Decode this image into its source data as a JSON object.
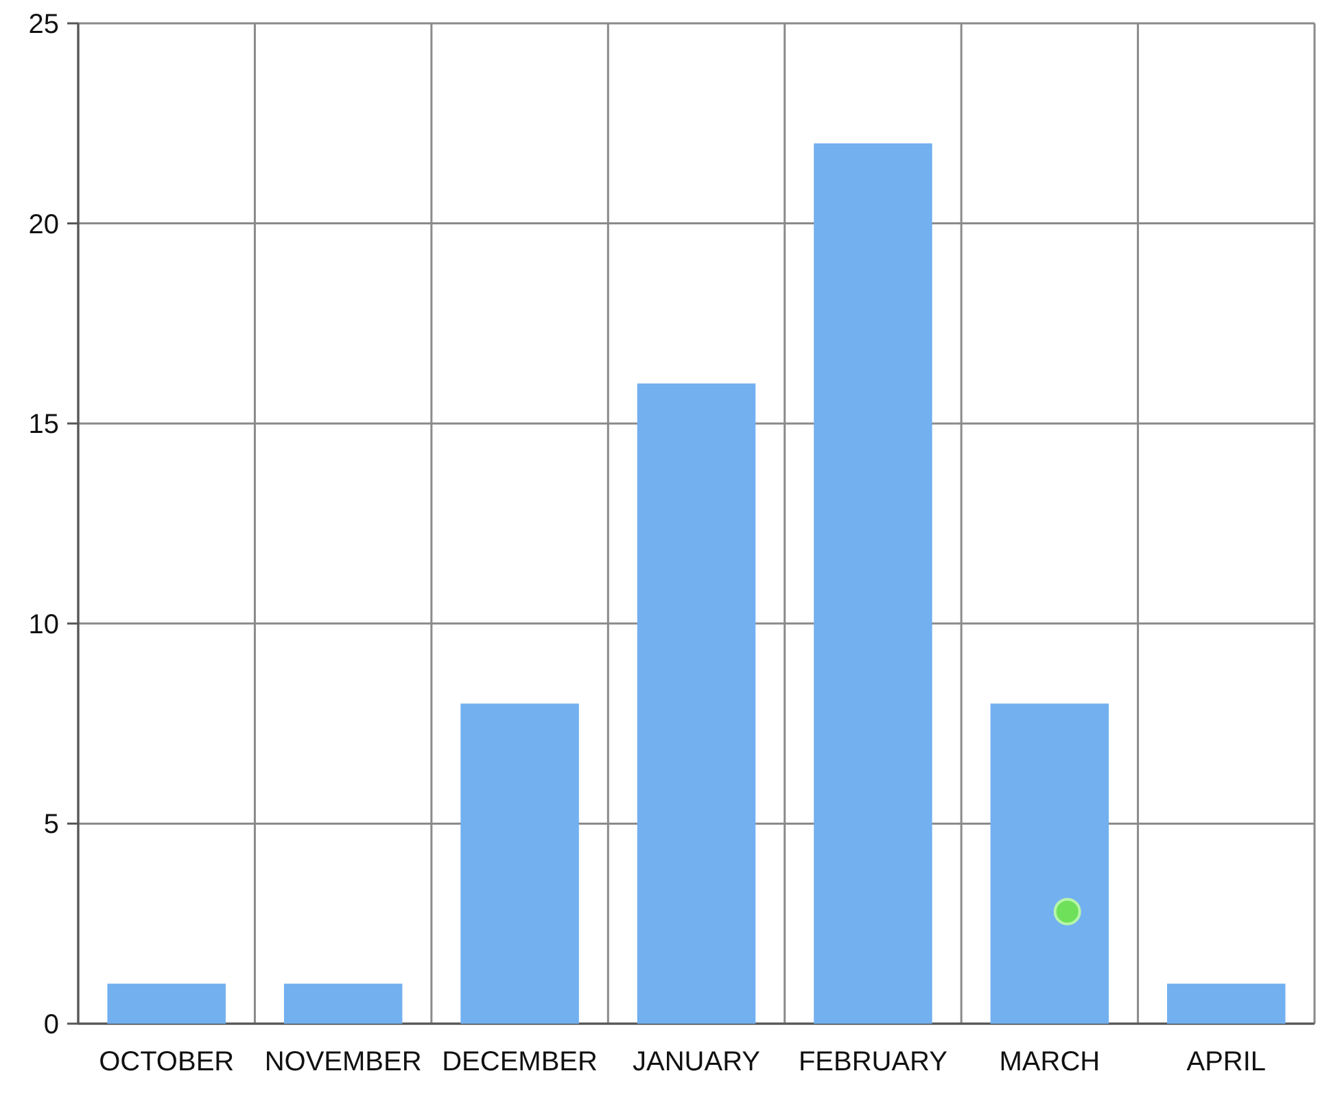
{
  "chart_data": {
    "type": "bar",
    "categories": [
      "OCTOBER",
      "NOVEMBER",
      "DECEMBER",
      "JANUARY",
      "FEBRUARY",
      "MARCH",
      "APRIL"
    ],
    "series": [
      {
        "color": "#72b0f0",
        "values": [
          1,
          1,
          8,
          16,
          22,
          8,
          1
        ]
      },
      {
        "type": "scatter",
        "color": "#6ee05a",
        "x": [
          "MARCH"
        ],
        "values": [
          2.8
        ]
      }
    ],
    "ylim": [
      0,
      25
    ],
    "yticks": [
      0,
      5,
      10,
      15,
      20,
      25
    ],
    "grid": true,
    "marker": "circle"
  }
}
